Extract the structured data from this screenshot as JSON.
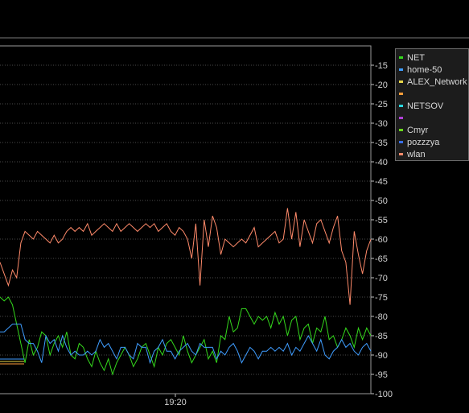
{
  "colors": {
    "background": "#000000",
    "grid": "#4a4a4a",
    "axis": "#bfbfbf",
    "tick_text": "#d0d0d0",
    "frame": "#9a9a9a"
  },
  "chart_data": {
    "type": "line",
    "title": "",
    "xlabel": "",
    "ylabel": "",
    "ylim": [
      -100,
      -10
    ],
    "y_ticks": [
      -15,
      -20,
      -25,
      -30,
      -35,
      -40,
      -45,
      -50,
      -55,
      -60,
      -65,
      -70,
      -75,
      -80,
      -85,
      -90,
      -95,
      -100
    ],
    "x_tick_labels": [
      "19:20"
    ],
    "grid": true,
    "legend_position": "top-right",
    "series": [
      {
        "name": "NET",
        "color": "#34d81c",
        "values": [
          -75,
          -76,
          -75,
          -77,
          -82,
          -87,
          -92,
          -86,
          -90,
          -88,
          -84,
          -85,
          -90,
          -87,
          -85,
          -88,
          -84,
          -90,
          -91,
          -87,
          -88,
          -91,
          -93,
          -89,
          -92,
          -94,
          -91,
          -95,
          -92,
          -90,
          -88,
          -90,
          -93,
          -91,
          -88,
          -87,
          -90,
          -93,
          -88,
          -90,
          -87,
          -86,
          -88,
          -90,
          -85,
          -89,
          -92,
          -90,
          -88,
          -86,
          -91,
          -89,
          -92,
          -85,
          -86,
          -80,
          -84,
          -83,
          -78,
          -78,
          -80,
          -82,
          -80,
          -81,
          -80,
          -83,
          -79,
          -82,
          -80,
          -85,
          -81,
          -80,
          -86,
          -83,
          -82,
          -87,
          -83,
          -84,
          -80,
          -86,
          -85,
          -88,
          -86,
          -83,
          -85,
          -88,
          -83,
          -86,
          -83,
          -85
        ]
      },
      {
        "name": "home-50",
        "color": "#3f9dff",
        "values": [
          -84,
          -84,
          -83,
          -82,
          -82,
          -82,
          -86,
          -87,
          -87,
          -89,
          -92,
          -85,
          -87,
          -86,
          -89,
          -85,
          -88,
          -90,
          -89,
          -90,
          -90,
          -89,
          -90,
          -89,
          -86,
          -88,
          -87,
          -89,
          -91,
          -88,
          -88,
          -90,
          -91,
          -87,
          -88,
          -88,
          -92,
          -89,
          -88,
          -86,
          -89,
          -89,
          -91,
          -89,
          -88,
          -87,
          -89,
          -90,
          -87,
          -88,
          -88,
          -88,
          -91,
          -89,
          -90,
          -88,
          -87,
          -89,
          -92,
          -90,
          -88,
          -89,
          -91,
          -89,
          -89,
          -88,
          -89,
          -88,
          -89,
          -87,
          -90,
          -88,
          -89,
          -87,
          -85,
          -87,
          -89,
          -86,
          -90,
          -91,
          -89,
          -88,
          -86,
          -88,
          -87,
          -89,
          -90,
          -88,
          -87,
          -89
        ]
      },
      {
        "name": "ALEX_Network",
        "color": "#e9d84a",
        "values": []
      },
      {
        "name": "ᅟᅟᅟ",
        "color": "#ff9d3a",
        "values": []
      },
      {
        "name": "NETSOV",
        "color": "#2ad8e0",
        "values": []
      },
      {
        "name": "ᅟᅟᅟᅟ",
        "color": "#b040d8",
        "values": []
      },
      {
        "name": "Cmyr",
        "color": "#6ad81c",
        "values": []
      },
      {
        "name": "pozzzya",
        "color": "#3a70e8",
        "values": []
      },
      {
        "name": "wlan",
        "color": "#ff8a6a",
        "values": [
          -66,
          -69,
          -72,
          -68,
          -70,
          -61,
          -58,
          -59,
          -60,
          -58,
          -59,
          -60,
          -61,
          -59,
          -61,
          -60,
          -58,
          -57,
          -58,
          -57,
          -58,
          -56,
          -59,
          -58,
          -57,
          -56,
          -57,
          -58,
          -56,
          -58,
          -57,
          -56,
          -57,
          -58,
          -57,
          -56,
          -57,
          -56,
          -58,
          -57,
          -56,
          -58,
          -59,
          -57,
          -58,
          -60,
          -65,
          -56,
          -72,
          -55,
          -62,
          -54,
          -57,
          -64,
          -60,
          -61,
          -62,
          -61,
          -60,
          -61,
          -59,
          -57,
          -62,
          -61,
          -60,
          -59,
          -58,
          -61,
          -60,
          -52,
          -60,
          -53,
          -62,
          -55,
          -58,
          -61,
          -56,
          -55,
          -58,
          -61,
          -57,
          -54,
          -63,
          -66,
          -77,
          -58,
          -64,
          -69,
          -63,
          -60
        ]
      }
    ]
  }
}
